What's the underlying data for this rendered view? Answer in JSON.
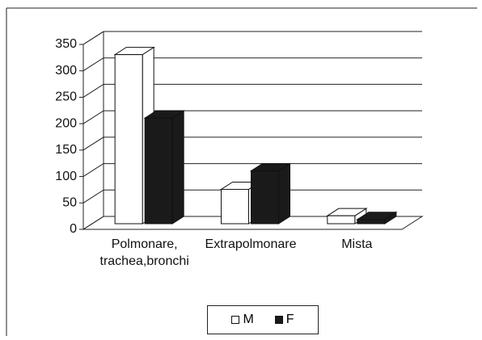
{
  "chart_data": {
    "type": "bar3d",
    "categories": [
      "Polmonare, trachea,bronchi",
      "Extrapolmonare",
      "Mista"
    ],
    "series": [
      {
        "name": "M",
        "color": "#ffffff",
        "values": [
          320,
          65,
          15
        ]
      },
      {
        "name": "F",
        "color": "#1a1a1a",
        "values": [
          200,
          100,
          8
        ]
      }
    ],
    "ylim": [
      0,
      350
    ],
    "yticks": [
      0,
      50,
      100,
      150,
      200,
      250,
      300,
      350
    ],
    "grid": true
  }
}
